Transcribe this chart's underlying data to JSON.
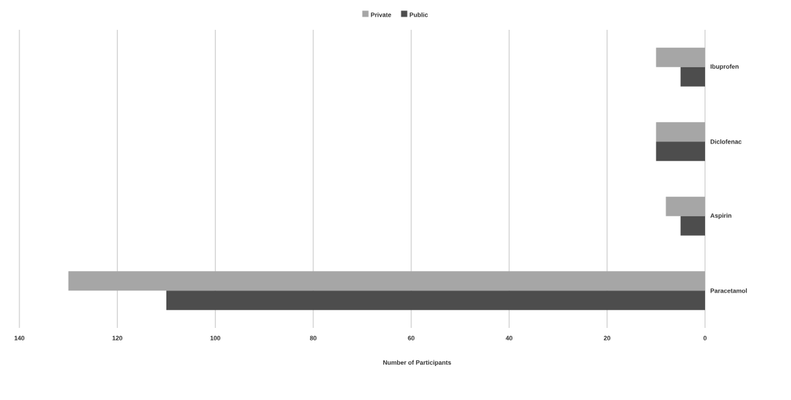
{
  "chart_data": {
    "type": "bar",
    "orientation": "horizontal",
    "xlabel": "Number of Participants",
    "categories": [
      "Ibuprofen",
      "Diclofenac",
      "Aspirin",
      "Paracetamol"
    ],
    "series": [
      {
        "name": "Private",
        "color": "#a6a6a6",
        "values": [
          10,
          10,
          8,
          130
        ]
      },
      {
        "name": "Public",
        "color": "#4d4d4d",
        "values": [
          5,
          10,
          5,
          110
        ]
      }
    ],
    "xlim": [
      140,
      0
    ],
    "xticks": [
      140,
      120,
      100,
      80,
      60,
      40,
      20,
      0
    ],
    "grid": "x",
    "legend": "top"
  }
}
